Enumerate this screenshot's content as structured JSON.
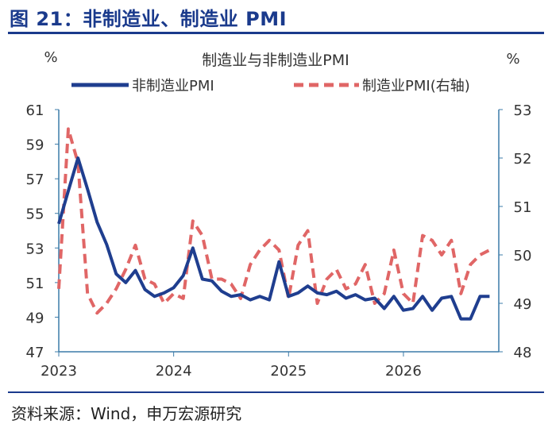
{
  "figure_title": "图 21：非制造业、制造业 PMI",
  "source": "资料来源：Wind，申万宏源研究",
  "colors": {
    "title": "#1a3a8c",
    "nonmfg": "#1f3e8f",
    "mfg": "#e06666",
    "axis": "#3b7ba8"
  },
  "chart_data": {
    "type": "line",
    "title": "制造业与非制造业PMI",
    "left_unit": "%",
    "right_unit": "%",
    "x_ticks": [
      "2023",
      "2024",
      "2025",
      "2026"
    ],
    "x_range": [
      2023.0,
      2026.83
    ],
    "ylim_left": [
      47,
      61
    ],
    "yticks_left": [
      "61",
      "59",
      "57",
      "55",
      "53",
      "51",
      "49",
      "47"
    ],
    "ylim_right": [
      48,
      53
    ],
    "yticks_right": [
      "53",
      "52",
      "51",
      "50",
      "49",
      "48"
    ],
    "grid": false,
    "legend_position": "top",
    "series": [
      {
        "name": "非制造业PMI",
        "axis": "left",
        "style": "solid",
        "x": [
          2023.0,
          2023.083,
          2023.167,
          2023.25,
          2023.333,
          2023.417,
          2023.5,
          2023.583,
          2023.667,
          2023.75,
          2023.833,
          2023.917,
          2024.0,
          2024.083,
          2024.167,
          2024.25,
          2024.333,
          2024.417,
          2024.5,
          2024.583,
          2024.667,
          2024.75,
          2024.833,
          2024.917,
          2025.0,
          2025.083,
          2025.167,
          2025.25,
          2025.333,
          2025.417,
          2025.5,
          2025.583,
          2025.667,
          2025.75,
          2025.833,
          2025.917,
          2026.0,
          2026.083,
          2026.167,
          2026.25,
          2026.333,
          2026.417,
          2026.5,
          2026.583,
          2026.667,
          2026.75
        ],
        "values": [
          54.4,
          56.3,
          58.2,
          56.4,
          54.5,
          53.2,
          51.5,
          51.0,
          51.7,
          50.6,
          50.2,
          50.4,
          50.7,
          51.4,
          53.0,
          51.2,
          51.1,
          50.5,
          50.2,
          50.3,
          50.0,
          50.2,
          50.0,
          52.2,
          50.2,
          50.4,
          50.8,
          50.4,
          50.3,
          50.5,
          50.1,
          50.3,
          50.0,
          50.1,
          49.5,
          50.2,
          49.4,
          49.5,
          50.2,
          49.4,
          50.1,
          50.2,
          48.9,
          48.9,
          50.2,
          50.2
        ]
      },
      {
        "name": "制造业PMI(右轴)",
        "axis": "right",
        "style": "dashed",
        "x": [
          2023.0,
          2023.083,
          2023.167,
          2023.25,
          2023.333,
          2023.417,
          2023.5,
          2023.583,
          2023.667,
          2023.75,
          2023.833,
          2023.917,
          2024.0,
          2024.083,
          2024.167,
          2024.25,
          2024.333,
          2024.417,
          2024.5,
          2024.583,
          2024.667,
          2024.75,
          2024.833,
          2024.917,
          2025.0,
          2025.083,
          2025.167,
          2025.25,
          2025.333,
          2025.417,
          2025.5,
          2025.583,
          2025.667,
          2025.75,
          2025.833,
          2025.917,
          2026.0,
          2026.083,
          2026.167,
          2026.25,
          2026.333,
          2026.417,
          2026.5,
          2026.583,
          2026.667,
          2026.75
        ],
        "values": [
          49.3,
          52.6,
          51.9,
          49.2,
          48.8,
          49.0,
          49.3,
          49.7,
          50.2,
          49.5,
          49.4,
          49.0,
          49.2,
          49.1,
          50.7,
          50.4,
          49.5,
          49.5,
          49.4,
          49.1,
          49.8,
          50.1,
          50.3,
          50.1,
          49.1,
          50.2,
          50.5,
          49.0,
          49.5,
          49.7,
          49.3,
          49.4,
          49.8,
          49.0,
          49.2,
          50.1,
          49.2,
          49.0,
          50.4,
          50.3,
          50.0,
          50.3,
          49.2,
          49.8,
          50.0,
          50.1
        ]
      }
    ]
  }
}
